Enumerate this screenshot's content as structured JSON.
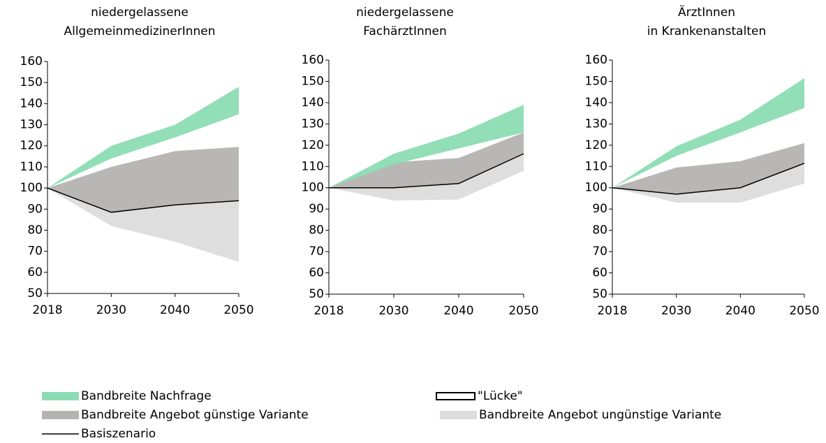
{
  "chart_data": [
    {
      "type": "area",
      "title": [
        "niedergelassene",
        "AllgemeinmedizinerInnen"
      ],
      "categories": [
        "2018",
        "2030",
        "2040",
        "2050"
      ],
      "ylim": [
        50,
        160
      ],
      "yticks": [
        50,
        60,
        70,
        80,
        90,
        100,
        110,
        120,
        130,
        140,
        150,
        160
      ],
      "series": [
        {
          "style": "band",
          "color": "#dcdcdc",
          "lower": [
            100,
            82,
            74.5,
            65
          ],
          "upper": [
            100,
            88.5,
            92,
            94
          ]
        },
        {
          "style": "band",
          "color": "#b5b3b2",
          "lower": [
            100,
            88.5,
            92,
            94
          ],
          "upper": [
            100,
            110,
            117.5,
            119.5
          ]
        },
        {
          "style": "band",
          "color": "#8cdcb3",
          "lower": [
            100,
            114,
            124,
            135
          ],
          "upper": [
            100,
            120,
            130,
            148
          ]
        },
        {
          "style": "line",
          "color": "#000000",
          "values": [
            100,
            88.5,
            92,
            94
          ]
        }
      ]
    },
    {
      "type": "area",
      "title": [
        "niedergelassene",
        "FachärztInnen"
      ],
      "categories": [
        "2018",
        "2030",
        "2040",
        "2050"
      ],
      "ylim": [
        50,
        160
      ],
      "yticks": [
        50,
        60,
        70,
        80,
        90,
        100,
        110,
        120,
        130,
        140,
        150,
        160
      ],
      "series": [
        {
          "style": "band",
          "color": "#dcdcdc",
          "lower": [
            100,
            94,
            94.5,
            108
          ],
          "upper": [
            100,
            100,
            102,
            116
          ]
        },
        {
          "style": "band",
          "color": "#b5b3b2",
          "lower": [
            100,
            100,
            102,
            116
          ],
          "upper": [
            100,
            112,
            114,
            126
          ]
        },
        {
          "style": "band",
          "color": "#8cdcb3",
          "lower": [
            100,
            111,
            118.5,
            126
          ],
          "upper": [
            100,
            116,
            125.5,
            139
          ]
        },
        {
          "style": "line",
          "color": "#000000",
          "values": [
            100,
            100,
            102,
            116
          ]
        }
      ]
    },
    {
      "type": "area",
      "title": [
        "ÄrztInnen",
        "in Krankenanstalten"
      ],
      "categories": [
        "2018",
        "2030",
        "2040",
        "2050"
      ],
      "ylim": [
        50,
        160
      ],
      "yticks": [
        50,
        60,
        70,
        80,
        90,
        100,
        110,
        120,
        130,
        140,
        150,
        160
      ],
      "series": [
        {
          "style": "band",
          "color": "#dcdcdc",
          "lower": [
            100,
            93,
            93,
            102
          ],
          "upper": [
            100,
            97,
            100,
            111.5
          ]
        },
        {
          "style": "band",
          "color": "#b5b3b2",
          "lower": [
            100,
            97,
            100,
            111.5
          ],
          "upper": [
            100,
            109.5,
            112.5,
            121
          ]
        },
        {
          "style": "band",
          "color": "#8cdcb3",
          "lower": [
            100,
            115,
            126,
            137.5
          ],
          "upper": [
            100,
            119.5,
            132,
            151.5
          ]
        },
        {
          "style": "line",
          "color": "#000000",
          "values": [
            100,
            97,
            100,
            111.5
          ]
        }
      ]
    }
  ],
  "legend": [
    {
      "name": "Bandbreite Nachfrage",
      "style": "band",
      "color": "#8cdcb3"
    },
    {
      "name": "\"Lücke\"",
      "style": "outline",
      "color": "#000000"
    },
    {
      "name": "Bandbreite Angebot günstige Variante",
      "style": "band",
      "color": "#b5b3b2"
    },
    {
      "name": "Bandbreite Angebot ungünstige Variante",
      "style": "band",
      "color": "#dcdcdc"
    },
    {
      "name": "Basiszenario",
      "style": "line",
      "color": "#000000"
    }
  ]
}
